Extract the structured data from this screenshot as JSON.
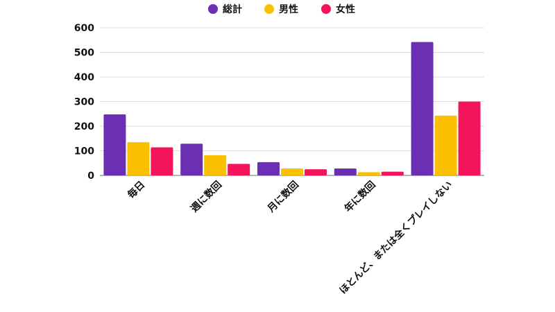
{
  "chart_data": {
    "type": "bar",
    "categories": [
      "毎日",
      "週に数回",
      "月に数回",
      "年に数回",
      "ほとんど、または全くプレイしない"
    ],
    "series": [
      {
        "name": "総計",
        "color": "#6a2fb3",
        "values": [
          248,
          129,
          54,
          28,
          542
        ]
      },
      {
        "name": "男性",
        "color": "#fbc100",
        "values": [
          135,
          82,
          28,
          13,
          243
        ]
      },
      {
        "name": "女性",
        "color": "#f4145a",
        "values": [
          114,
          47,
          25,
          15,
          300
        ]
      }
    ],
    "ylim": [
      0,
      600
    ],
    "yticks": [
      "0",
      "100",
      "200",
      "300",
      "400",
      "500",
      "600"
    ],
    "grid": true,
    "legend_position": "top-center"
  }
}
